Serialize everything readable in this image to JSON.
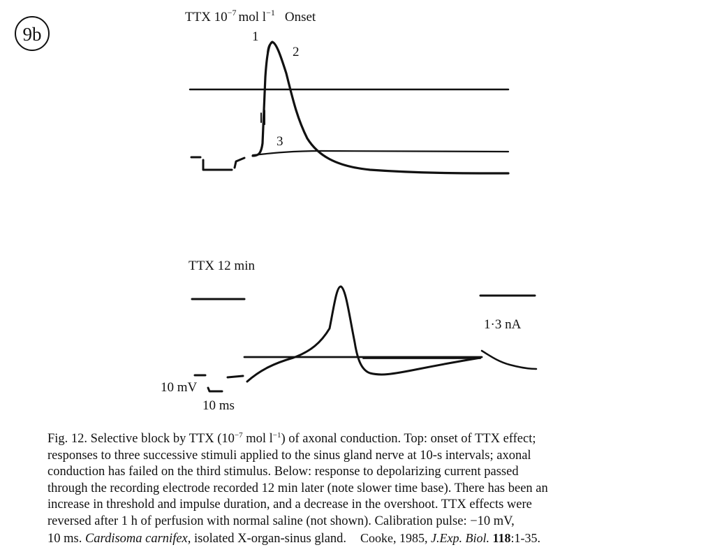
{
  "badge": "9b",
  "top_panel": {
    "title_prefix": "TTX 10",
    "title_exp": "−7",
    "title_unit": "mol l",
    "title_unit_exp": "−1",
    "title_suffix": "Onset",
    "trace_labels": [
      "1",
      "2",
      "3"
    ]
  },
  "bottom_panel": {
    "title": "TTX 12 min",
    "current_label": "1·3 nA",
    "cal_voltage": "10 mV",
    "cal_time": "10 ms"
  },
  "caption": {
    "lines": [
      [
        "Fig. 12. Selective block by TTX (10",
        "−7",
        " mol l",
        "−1",
        ") of axonal conduction. Top: onset of TTX effect;"
      ],
      [
        "responses to three successive stimuli applied to the sinus gland nerve at 10-s intervals; axonal"
      ],
      [
        "conduction has failed on the third stimulus. Below: response to depolarizing current passed"
      ],
      [
        "through the recording electrode recorded 12 min later (note slower time base). There has been an"
      ],
      [
        "increase in threshold and impulse duration, and a decrease in the overshoot. TTX effects were"
      ],
      [
        "reversed after 1 h of perfusion with normal saline (not shown). Calibration pulse: −10 mV,"
      ]
    ],
    "last_line_prefix": "10 ms. ",
    "species": "Cardisoma carnifex",
    "last_line_suffix": ", isolated X-organ-sinus gland.",
    "citation_author": "Cooke, 1985, ",
    "citation_journal": "J.Exp. Biol.",
    "citation_volume": "118",
    "citation_pages": ":1-35."
  }
}
